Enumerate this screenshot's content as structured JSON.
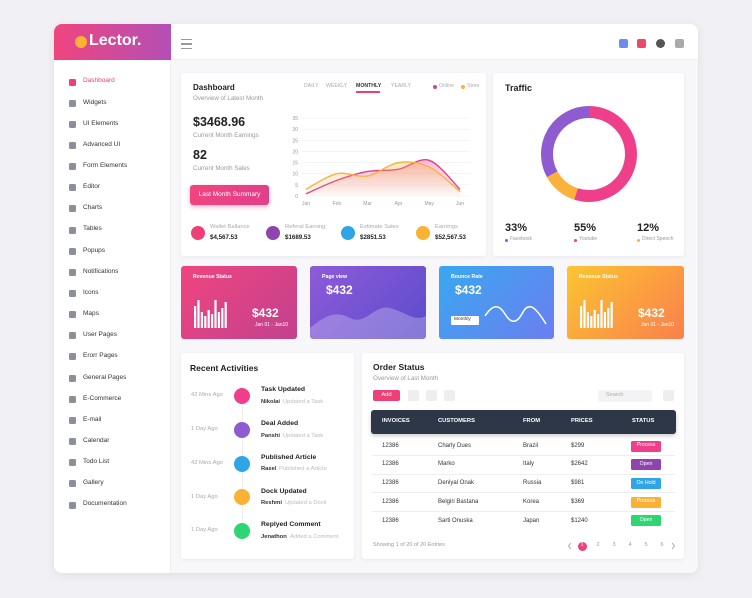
{
  "logo": "Lector.",
  "menu": [
    "Dashboard",
    "Widgets",
    "UI Elements",
    "Advanced UI",
    "Form Elements",
    "Editor",
    "Charts",
    "Tables",
    "Popups",
    "Notifications",
    "Icons",
    "Maps",
    "User Pages",
    "Erorr Pages",
    "General Pages",
    "E-Commerce",
    "E-mail",
    "Calendar",
    "Todo List",
    "Gallery",
    "Documentation"
  ],
  "dashboard": {
    "title": "Dashboard",
    "subtitle": "Overview of Latest Month",
    "tabs": [
      "DAILY",
      "WEEKLY",
      "MONTHLY",
      "YEARLY"
    ],
    "earnings": "$3468.96",
    "earnings_label": "Current Month Earnings",
    "sales": "82",
    "sales_label": "Current Month Sales",
    "button": "Last Month Summary",
    "chart": {
      "type": "area",
      "categories": [
        "Jan",
        "Feb",
        "Mar",
        "Apr",
        "May",
        "Jun"
      ],
      "ylim": [
        0,
        35
      ],
      "yticks": [
        0,
        5,
        10,
        15,
        20,
        25,
        30,
        35
      ],
      "series": [
        {
          "name": "Online",
          "color": "#e23f8b",
          "values": [
            1,
            7,
            11,
            12,
            16,
            3
          ]
        },
        {
          "name": "Store",
          "color": "#fbb13c",
          "values": [
            3,
            10,
            9,
            15,
            13,
            2
          ]
        }
      ]
    },
    "stats": [
      {
        "label": "Wallet Ballance",
        "value": "$4,567.53",
        "color": "#ef3f78"
      },
      {
        "label": "Referal Earning",
        "value": "$1689.53",
        "color": "#8e44ad"
      },
      {
        "label": "Estimate Sales",
        "value": "$2851.53",
        "color": "#2fa5e8"
      },
      {
        "label": "Earnings",
        "value": "$52,567.53",
        "color": "#f9b233"
      }
    ]
  },
  "traffic": {
    "title": "Traffic",
    "chart": {
      "type": "pie",
      "categories": [
        "Facebook",
        "Youtube",
        "Direct Speech"
      ],
      "values": [
        33,
        55,
        12
      ],
      "value_labels": [
        "33%",
        "55%",
        "12%"
      ],
      "colors": [
        "#8e5bd0",
        "#ef3f8a",
        "#fbb13c"
      ]
    }
  },
  "cards": [
    {
      "title": "Revenue Status",
      "value": "$432",
      "sub": "Jan 01 - Jan10",
      "bars": [
        22,
        28,
        16,
        12,
        18,
        14,
        28,
        16,
        20,
        26
      ]
    },
    {
      "title": "Page view",
      "value": "$432"
    },
    {
      "title": "Bounce Rate",
      "value": "$432",
      "select": "Monthly"
    },
    {
      "title": "Revenue Status",
      "value": "$432",
      "sub": "Jan 01 - Jan10",
      "bars": [
        22,
        28,
        16,
        12,
        18,
        14,
        28,
        16,
        20,
        26
      ]
    }
  ],
  "activities": {
    "title": "Recent Activities",
    "items": [
      {
        "time": "42 Mins Ago",
        "title": "Task Updated",
        "user": "Nikolai",
        "action": "Updated a Task",
        "color": "#ef3f8a"
      },
      {
        "time": "1 Day Ago",
        "title": "Deal Added",
        "user": "Panshi",
        "action": "Updated a Task",
        "color": "#8e5bd0"
      },
      {
        "time": "42 Mins Ago",
        "title": "Published Article",
        "user": "Rasel",
        "action": "Published a Article",
        "color": "#2fa5e8"
      },
      {
        "time": "1 Day Ago",
        "title": "Dock Updated",
        "user": "Reshmi",
        "action": "Updated a Dock",
        "color": "#f9b233"
      },
      {
        "time": "1 Day Ago",
        "title": "Replyed Comment",
        "user": "Jenathon",
        "action": "Added a Comment",
        "color": "#2ed573"
      }
    ]
  },
  "orders": {
    "title": "Order Status",
    "subtitle": "Overview of Last Month",
    "add": "Add",
    "search": "Search",
    "table": {
      "header": [
        "INVOICES",
        "CUSTOMERS",
        "FROM",
        "PRICES",
        "STATUS"
      ],
      "rows": [
        [
          "12386",
          "Charly Dues",
          "Brazil",
          "$299",
          "Process"
        ],
        [
          "12386",
          "Marko",
          "Italy",
          "$2642",
          "Open"
        ],
        [
          "12386",
          "Deniyal Onak",
          "Russia",
          "$981",
          "On Hold"
        ],
        [
          "12386",
          "Belgiri Bastana",
          "Korea",
          "$369",
          "Process"
        ],
        [
          "12386",
          "Sarti Onuska",
          "Japan",
          "$1240",
          "Open"
        ]
      ],
      "status_colors": [
        "#ef3f8a",
        "#8e44ad",
        "#2fa5e8",
        "#f9b233",
        "#2ed573"
      ]
    },
    "footer": "Showing 1 of 20 of 20 Entries",
    "pages": [
      1,
      2,
      3,
      4,
      5,
      6
    ]
  }
}
